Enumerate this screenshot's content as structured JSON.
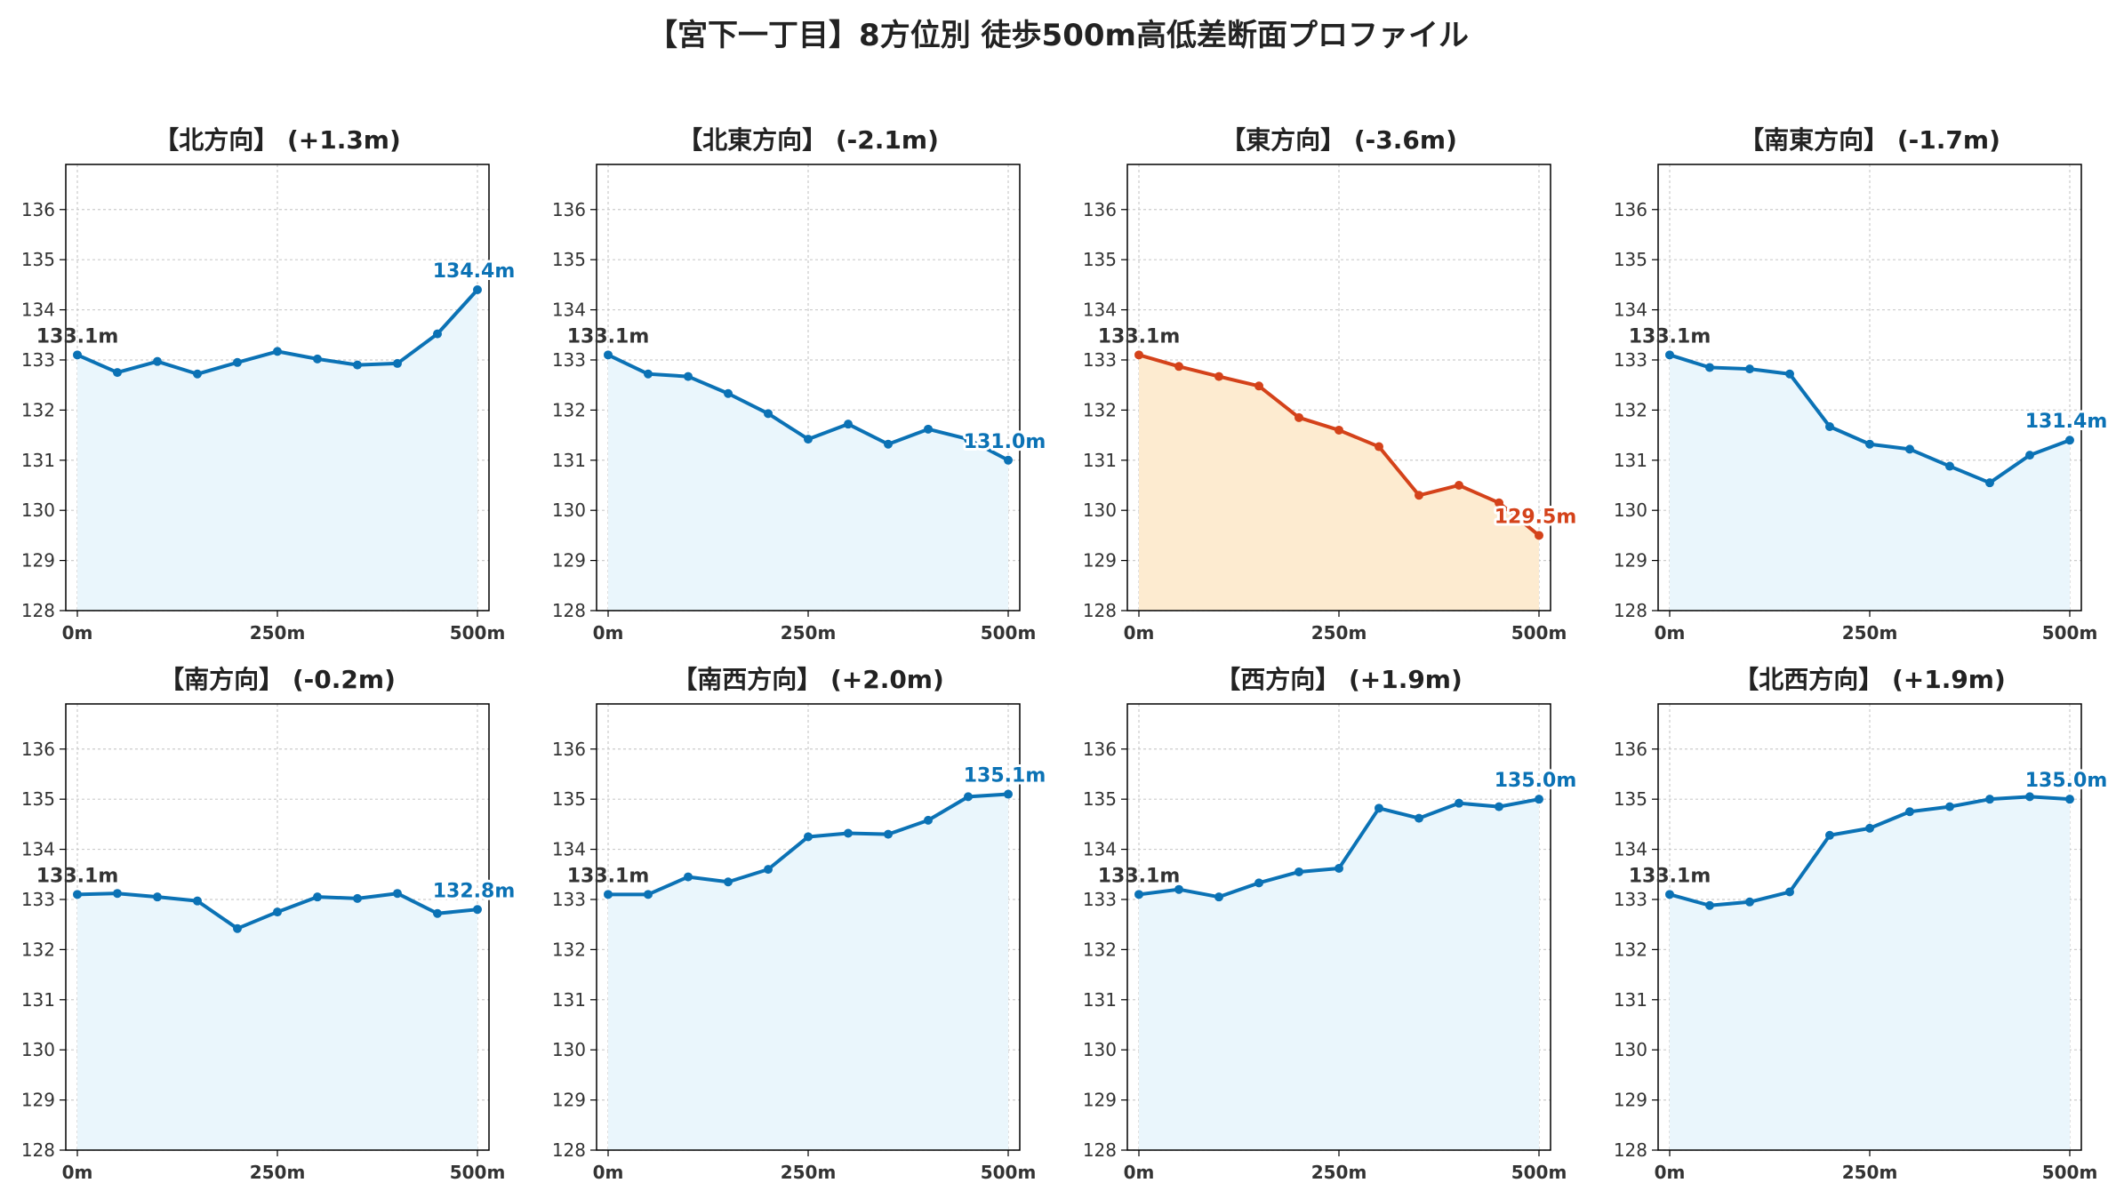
{
  "title": "【宮下一丁目】8方位別 徒歩500m高低差断面プロファイル",
  "colors": {
    "normal_line": "#0b72b5",
    "normal_fill": "#eaf6fc",
    "highlight_line": "#d4421a",
    "highlight_fill": "#fdebd0",
    "start_label": "#333333",
    "grid": "#cccccc"
  },
  "chart_data": [
    {
      "type": "line",
      "title": "【北方向】 (+1.3m)",
      "highlight": false,
      "x": [
        0,
        50,
        100,
        150,
        200,
        250,
        300,
        350,
        400,
        450,
        500
      ],
      "values": [
        133.1,
        132.75,
        132.97,
        132.72,
        132.95,
        133.17,
        133.02,
        132.9,
        132.93,
        133.52,
        134.4
      ],
      "start_label": "133.1m",
      "end_label": "134.4m",
      "xticks": [
        "0m",
        "250m",
        "500m"
      ],
      "yticks": [
        128,
        129,
        130,
        131,
        132,
        133,
        134,
        135,
        136
      ],
      "ylim": [
        128,
        136.9
      ],
      "grid": true
    },
    {
      "type": "line",
      "title": "【北東方向】 (-2.1m)",
      "highlight": false,
      "x": [
        0,
        50,
        100,
        150,
        200,
        250,
        300,
        350,
        400,
        450,
        500
      ],
      "values": [
        133.1,
        132.72,
        132.67,
        132.33,
        131.93,
        131.42,
        131.72,
        131.32,
        131.62,
        131.42,
        131.0
      ],
      "start_label": "133.1m",
      "end_label": "131.0m",
      "xticks": [
        "0m",
        "250m",
        "500m"
      ],
      "yticks": [
        128,
        129,
        130,
        131,
        132,
        133,
        134,
        135,
        136
      ],
      "ylim": [
        128,
        136.9
      ],
      "grid": true
    },
    {
      "type": "line",
      "title": "【東方向】 (-3.6m)",
      "highlight": true,
      "x": [
        0,
        50,
        100,
        150,
        200,
        250,
        300,
        350,
        400,
        450,
        500
      ],
      "values": [
        133.1,
        132.87,
        132.67,
        132.48,
        131.85,
        131.6,
        131.27,
        130.3,
        130.5,
        130.15,
        129.5
      ],
      "start_label": "133.1m",
      "end_label": "129.5m",
      "xticks": [
        "0m",
        "250m",
        "500m"
      ],
      "yticks": [
        128,
        129,
        130,
        131,
        132,
        133,
        134,
        135,
        136
      ],
      "ylim": [
        128,
        136.9
      ],
      "grid": true
    },
    {
      "type": "line",
      "title": "【南東方向】 (-1.7m)",
      "highlight": false,
      "x": [
        0,
        50,
        100,
        150,
        200,
        250,
        300,
        350,
        400,
        450,
        500
      ],
      "values": [
        133.1,
        132.85,
        132.82,
        132.72,
        131.67,
        131.32,
        131.22,
        130.88,
        130.55,
        131.1,
        131.4
      ],
      "start_label": "133.1m",
      "end_label": "131.4m",
      "xticks": [
        "0m",
        "250m",
        "500m"
      ],
      "yticks": [
        128,
        129,
        130,
        131,
        132,
        133,
        134,
        135,
        136
      ],
      "ylim": [
        128,
        136.9
      ],
      "grid": true
    },
    {
      "type": "line",
      "title": "【南方向】 (-0.2m)",
      "highlight": false,
      "x": [
        0,
        50,
        100,
        150,
        200,
        250,
        300,
        350,
        400,
        450,
        500
      ],
      "values": [
        133.1,
        133.12,
        133.05,
        132.97,
        132.42,
        132.75,
        133.05,
        133.02,
        133.12,
        132.72,
        132.8
      ],
      "start_label": "133.1m",
      "end_label": "132.8m",
      "xticks": [
        "0m",
        "250m",
        "500m"
      ],
      "yticks": [
        128,
        129,
        130,
        131,
        132,
        133,
        134,
        135,
        136
      ],
      "ylim": [
        128,
        136.9
      ],
      "grid": true
    },
    {
      "type": "line",
      "title": "【南西方向】 (+2.0m)",
      "highlight": false,
      "x": [
        0,
        50,
        100,
        150,
        200,
        250,
        300,
        350,
        400,
        450,
        500
      ],
      "values": [
        133.1,
        133.1,
        133.45,
        133.35,
        133.6,
        134.25,
        134.32,
        134.3,
        134.58,
        135.05,
        135.1
      ],
      "start_label": "133.1m",
      "end_label": "135.1m",
      "xticks": [
        "0m",
        "250m",
        "500m"
      ],
      "yticks": [
        128,
        129,
        130,
        131,
        132,
        133,
        134,
        135,
        136
      ],
      "ylim": [
        128,
        136.9
      ],
      "grid": true
    },
    {
      "type": "line",
      "title": "【西方向】 (+1.9m)",
      "highlight": false,
      "x": [
        0,
        50,
        100,
        150,
        200,
        250,
        300,
        350,
        400,
        450,
        500
      ],
      "values": [
        133.1,
        133.2,
        133.05,
        133.33,
        133.55,
        133.62,
        134.82,
        134.62,
        134.92,
        134.85,
        135.0
      ],
      "start_label": "133.1m",
      "end_label": "135.0m",
      "xticks": [
        "0m",
        "250m",
        "500m"
      ],
      "yticks": [
        128,
        129,
        130,
        131,
        132,
        133,
        134,
        135,
        136
      ],
      "ylim": [
        128,
        136.9
      ],
      "grid": true
    },
    {
      "type": "line",
      "title": "【北西方向】 (+1.9m)",
      "highlight": false,
      "x": [
        0,
        50,
        100,
        150,
        200,
        250,
        300,
        350,
        400,
        450,
        500
      ],
      "values": [
        133.1,
        132.88,
        132.95,
        133.15,
        134.28,
        134.42,
        134.75,
        134.85,
        135.0,
        135.05,
        135.0
      ],
      "start_label": "133.1m",
      "end_label": "135.0m",
      "xticks": [
        "0m",
        "250m",
        "500m"
      ],
      "yticks": [
        128,
        129,
        130,
        131,
        132,
        133,
        134,
        135,
        136
      ],
      "ylim": [
        128,
        136.9
      ],
      "grid": true
    }
  ]
}
